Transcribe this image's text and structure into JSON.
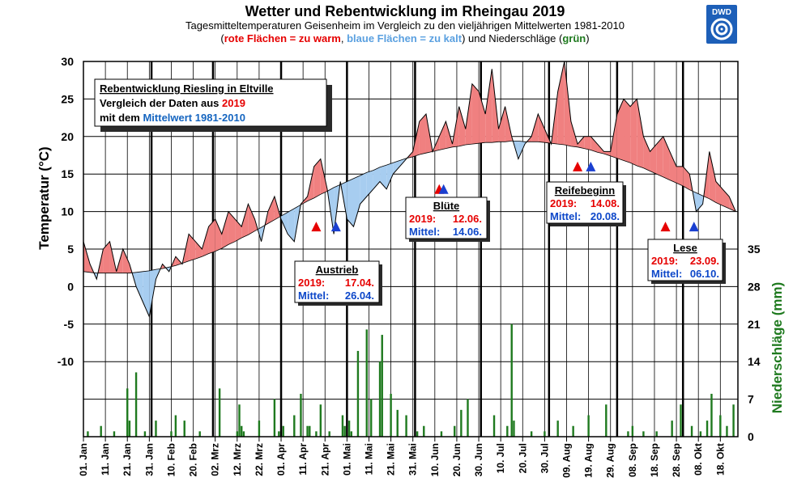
{
  "chart_data": {
    "type": "area",
    "title": "Wetter und Rebentwicklung im Rheingau 2019",
    "subtitle1": "Tagesmitteltemperaturen  Geisenheim im Vergleich zu den vieljährigen Mittelwerten  1981-2010",
    "subtitle2": {
      "open": "(",
      "red": "rote Flächen = zu warm",
      "sep": ", ",
      "blue": "blaue Flächen = zu kalt",
      "mid": ") und Niederschläge (",
      "green": "grün",
      "close": ")"
    },
    "logo_text": "DWD",
    "ylabel": "Temperatur (°C)",
    "y2label": "Niederschläge (mm)",
    "ylim": [
      -20,
      30
    ],
    "y2lim": [
      0,
      70
    ],
    "yticks": [
      "30",
      "25",
      "20",
      "15",
      "10",
      "5",
      "0",
      "-5",
      "-10"
    ],
    "y2ticks": [
      "35",
      "28",
      "21",
      "14",
      "7",
      "0"
    ],
    "x_tick_labels": [
      "01. Jan",
      "11. Jan",
      "21. Jan",
      "31. Jan",
      "10. Feb",
      "20. Feb",
      "02. Mrz",
      "12. Mrz",
      "22. Mrz",
      "01. Apr",
      "11. Apr",
      "21. Apr",
      "01. Mai",
      "11. Mai",
      "21. Mai",
      "31. Mai",
      "10. Jun",
      "20. Jun",
      "30. Jun",
      "10. Jul",
      "20. Jul",
      "30. Jul",
      "09. Aug",
      "19. Aug",
      "29. Aug",
      "08. Sep",
      "18. Sep",
      "28. Sep",
      "08. Okt",
      "18. Okt"
    ],
    "days_shown": 298,
    "grid": true,
    "colors": {
      "warm": "#f08080",
      "cold": "#a7cdf0",
      "rain": "#1f7a1f",
      "red_text": "#e60000",
      "blue_text": "#0d47c9",
      "green_text": "#1f7a1f"
    },
    "series": [
      {
        "name": "2019",
        "x": [
          0,
          3,
          6,
          9,
          12,
          15,
          18,
          21,
          24,
          27,
          30,
          33,
          36,
          39,
          42,
          45,
          48,
          51,
          54,
          57,
          60,
          63,
          66,
          69,
          72,
          75,
          78,
          81,
          84,
          87,
          90,
          93,
          96,
          99,
          102,
          105,
          108,
          111,
          114,
          117,
          120,
          123,
          126,
          129,
          132,
          135,
          138,
          141,
          144,
          147,
          150,
          153,
          156,
          159,
          162,
          165,
          168,
          171,
          174,
          177,
          180,
          183,
          186,
          189,
          192,
          195,
          198,
          201,
          204,
          207,
          210,
          213,
          216,
          219,
          222,
          225,
          228,
          231,
          234,
          237,
          240,
          243,
          246,
          249,
          252,
          255,
          258,
          261,
          264,
          267,
          270,
          273,
          276,
          279,
          282,
          285,
          288,
          291,
          294,
          297
        ],
        "values": [
          6,
          3,
          1,
          5,
          6,
          2,
          5,
          3,
          0,
          -2,
          -4,
          1,
          3,
          2,
          4,
          3,
          7,
          6,
          5,
          8,
          9,
          7,
          10,
          9,
          8,
          11,
          9,
          6,
          10,
          12,
          9,
          7,
          6,
          11,
          12,
          16,
          17,
          13,
          7,
          14,
          9,
          8,
          11,
          12,
          13,
          14,
          13,
          15,
          16,
          17,
          18,
          22,
          23,
          18,
          20,
          22,
          19,
          24,
          21,
          27,
          26,
          23,
          29,
          21,
          24,
          20,
          17,
          19,
          20,
          23,
          21,
          19,
          26,
          30,
          22,
          19,
          20,
          20,
          19,
          18,
          18,
          23,
          25,
          24,
          25,
          20,
          18,
          19,
          20,
          18,
          16,
          16,
          15,
          10,
          11,
          18,
          14,
          13,
          12,
          10
        ]
      },
      {
        "name": "Mittelwert 1981-2010",
        "x": [
          0,
          3,
          6,
          9,
          12,
          15,
          18,
          21,
          24,
          27,
          30,
          33,
          36,
          39,
          42,
          45,
          48,
          51,
          54,
          57,
          60,
          63,
          66,
          69,
          72,
          75,
          78,
          81,
          84,
          87,
          90,
          93,
          96,
          99,
          102,
          105,
          108,
          111,
          114,
          117,
          120,
          123,
          126,
          129,
          132,
          135,
          138,
          141,
          144,
          147,
          150,
          153,
          156,
          159,
          162,
          165,
          168,
          171,
          174,
          177,
          180,
          183,
          186,
          189,
          192,
          195,
          198,
          201,
          204,
          207,
          210,
          213,
          216,
          219,
          222,
          225,
          228,
          231,
          234,
          237,
          240,
          243,
          246,
          249,
          252,
          255,
          258,
          261,
          264,
          267,
          270,
          273,
          276,
          279,
          282,
          285,
          288,
          291,
          294,
          297
        ],
        "values": [
          2.0,
          1.9,
          1.8,
          1.8,
          1.8,
          1.8,
          1.8,
          1.8,
          1.9,
          2.0,
          2.1,
          2.3,
          2.4,
          2.6,
          2.8,
          3.1,
          3.4,
          3.7,
          4.0,
          4.4,
          4.7,
          5.1,
          5.6,
          6.0,
          6.5,
          6.9,
          7.4,
          7.9,
          8.4,
          8.9,
          9.4,
          9.9,
          10.4,
          10.9,
          11.4,
          11.8,
          12.3,
          12.7,
          13.2,
          13.6,
          14.0,
          14.4,
          14.8,
          15.2,
          15.5,
          15.9,
          16.2,
          16.5,
          16.8,
          17.1,
          17.3,
          17.6,
          17.8,
          18.0,
          18.2,
          18.4,
          18.6,
          18.7,
          18.9,
          19.0,
          19.1,
          19.2,
          19.2,
          19.3,
          19.3,
          19.4,
          19.4,
          19.3,
          19.3,
          19.3,
          19.2,
          19.1,
          19.0,
          18.9,
          18.7,
          18.6,
          18.4,
          18.2,
          17.9,
          17.7,
          17.4,
          17.1,
          16.8,
          16.5,
          16.1,
          15.8,
          15.4,
          15.0,
          14.6,
          14.2,
          13.8,
          13.4,
          12.9,
          12.5,
          12.1,
          11.7,
          11.2,
          10.8,
          10.4,
          10.0
        ]
      },
      {
        "name": "Niederschläge",
        "x": [
          2,
          8,
          14,
          20,
          21,
          24,
          28,
          33,
          40,
          42,
          46,
          53,
          62,
          70,
          71,
          72,
          73,
          80,
          87,
          89,
          91,
          96,
          99,
          102,
          103,
          106,
          108,
          112,
          118,
          119,
          121,
          122,
          125,
          129,
          131,
          135,
          136,
          140,
          143,
          147,
          152,
          155,
          163,
          169,
          172,
          175,
          187,
          193,
          195,
          196,
          204,
          210,
          216,
          223,
          230,
          238,
          248,
          250,
          255,
          261,
          268,
          272,
          277,
          281,
          284,
          286,
          290,
          293,
          296
        ],
        "values": [
          1,
          2,
          1,
          9,
          3,
          12,
          1,
          3,
          1,
          4,
          3,
          1,
          9,
          1,
          6,
          2,
          1,
          3,
          7,
          1,
          2,
          4,
          8,
          2,
          2,
          1,
          6,
          1,
          4,
          2,
          3,
          1,
          16,
          20,
          7,
          14,
          19,
          8,
          5,
          4,
          1,
          2,
          1,
          2,
          5,
          7,
          4,
          2,
          21,
          3,
          1,
          1,
          3,
          2,
          4,
          6,
          1,
          2,
          1,
          1,
          3,
          6,
          2,
          1,
          3,
          8,
          4,
          2,
          6
        ]
      }
    ],
    "markers": [
      {
        "series": "2019",
        "day": 106,
        "temp": 8
      },
      {
        "series": "Mittelwert 1981-2010",
        "day": 115,
        "temp": 8
      },
      {
        "series": "2019",
        "day": 162,
        "temp": 13
      },
      {
        "series": "Mittelwert 1981-2010",
        "day": 164,
        "temp": 13
      },
      {
        "series": "2019",
        "day": 225,
        "temp": 16
      },
      {
        "series": "Mittelwert 1981-2010",
        "day": 231,
        "temp": 16
      },
      {
        "series": "2019",
        "day": 265,
        "temp": 8
      },
      {
        "series": "Mittelwert 1981-2010",
        "day": 278,
        "temp": 8
      }
    ],
    "annotations": {
      "legend": {
        "line1": "Rebentwicklung Riesling in Eltville",
        "line2_prefix": "Vergleich der Daten aus ",
        "line2_year": "2019",
        "line3_prefix": "mit dem ",
        "line3_blue": "Mittelwert 1981-2010"
      },
      "boxes": [
        {
          "key": "austrieb",
          "title": "Austrieb",
          "row1_label": "2019:",
          "row1_value": "17.04.",
          "row2_label": "Mittel:",
          "row2_value": "26.04."
        },
        {
          "key": "bluete",
          "title": "Blüte",
          "row1_label": "2019:",
          "row1_value": "12.06.",
          "row2_label": "Mittel:",
          "row2_value": "14.06."
        },
        {
          "key": "reifebeginn",
          "title": "Reifebeginn",
          "row1_label": "2019:",
          "row1_value": "14.08.",
          "row2_label": "Mittel:",
          "row2_value": "20.08."
        },
        {
          "key": "lese",
          "title": "Lese",
          "row1_label": "2019:",
          "row1_value": "23.09.",
          "row2_label": "Mittel:",
          "row2_value": "06.10."
        }
      ]
    }
  }
}
